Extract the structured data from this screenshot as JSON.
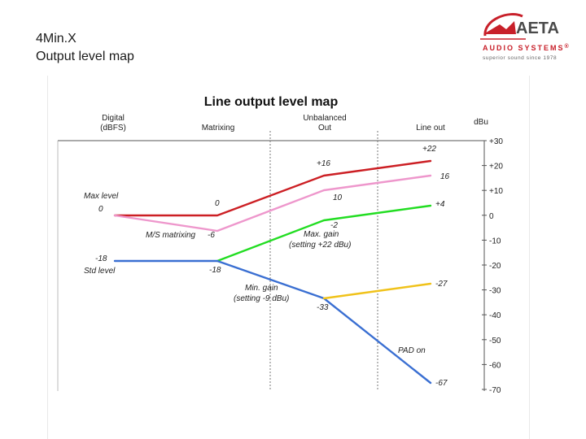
{
  "slide": {
    "title_line1": "4Min.X",
    "title_line2": "Output level map"
  },
  "logo": {
    "brand": "AETA",
    "subtitle": "AUDIO SYSTEMS",
    "registered": "®",
    "tagline": "superior sound since 1978",
    "colors": {
      "red": "#c8202a",
      "gray": "#5a5a5a"
    }
  },
  "diagram": {
    "title": "Line output level map",
    "headers": {
      "digital_1": "Digital",
      "digital_2": "(dBFS)",
      "matrixing": "Matrixing",
      "unbalanced_1": "Unbalanced",
      "unbalanced_2": "Out",
      "line_out": "Line out",
      "dbu": "dBu"
    },
    "scale_ticks": [
      "+30",
      "+20",
      "+10",
      "0",
      "-10",
      "-20",
      "-30",
      "-40",
      "-50",
      "-60",
      "-70"
    ],
    "annotations": {
      "max_level": "Max level",
      "max_level_value": "0",
      "std_level_value": "-18",
      "std_level": "Std level",
      "ms_matrixing": "M/S matrixing",
      "ms_value": "-6",
      "matrix_zero": "0",
      "matrix_minus18": "-18",
      "max_gain_1": "Max. gain",
      "max_gain_2": "(setting +22 dBu)",
      "min_gain_1": "Min. gain",
      "min_gain_2": "(setting -9 dBu)",
      "unb_red": "+16",
      "unb_pink": "10",
      "unb_green": "-2",
      "unb_blue": "-33",
      "line_red": "+22",
      "line_pink": "16",
      "line_green": "+4",
      "line_yellow": "-27",
      "line_blue": "-67",
      "pad_on": "PAD on"
    },
    "series_colors": {
      "red": "#cc1f24",
      "pink": "#ee97cc",
      "green": "#22dd22",
      "blue": "#3a6fd2",
      "yellow": "#f0c21a"
    }
  }
}
